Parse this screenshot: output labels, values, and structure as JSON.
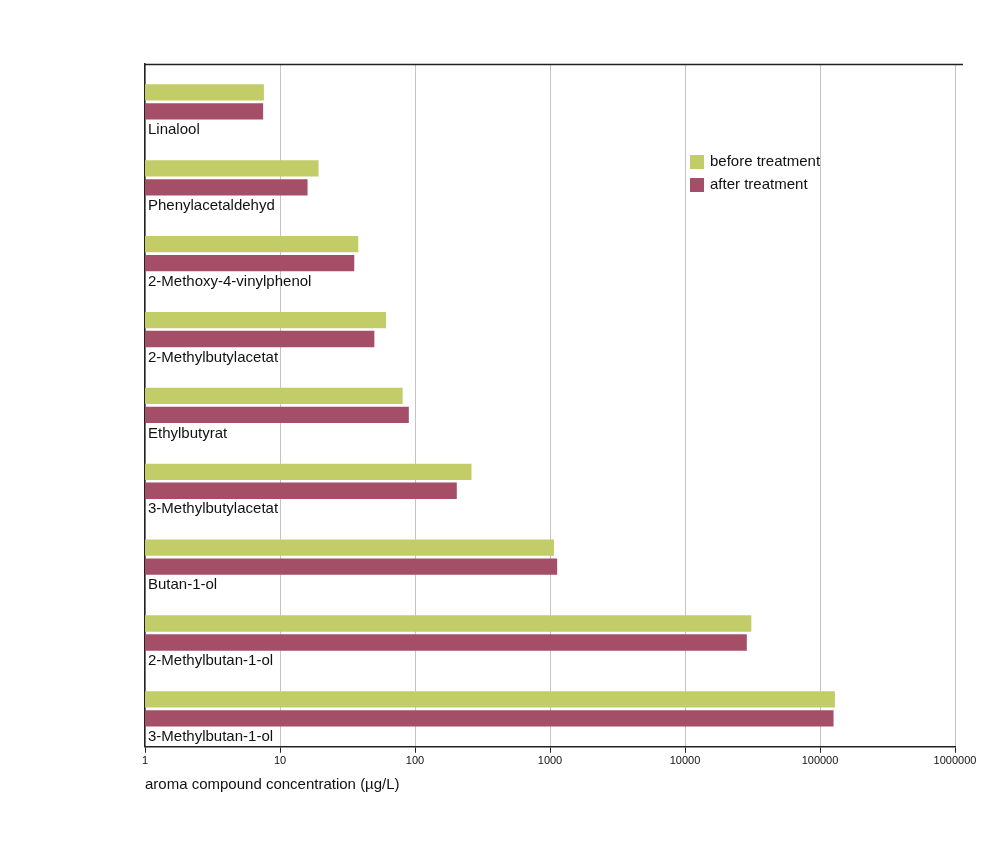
{
  "chart_data": {
    "type": "bar",
    "orientation": "horizontal",
    "log": "x",
    "grid": true,
    "legend": "upper right",
    "x_label": "aroma compound concentration (µg/L)",
    "categories": [
      "Linalool",
      "Phenylacetaldehyd",
      "2-Methoxy-4-vinylphenol",
      "2-Methylbutylacetat",
      "Ethylbutyrat",
      "3-Methylbutylacetat",
      "Butan-1-ol",
      "2-Methylbutan-1-ol",
      "3-Methylbutan-1-ol"
    ],
    "series": [
      {
        "name": "before treatment",
        "color": "#c3cd68",
        "values": [
          7.6,
          19.3,
          38,
          61,
          81,
          262,
          1070,
          31000,
          129000
        ]
      },
      {
        "name": "after treatment",
        "color": "#a44f67",
        "values": [
          7.5,
          16,
          35.5,
          50,
          90,
          204,
          1130,
          28700,
          126000
        ]
      }
    ],
    "xlim": [
      1,
      1000000
    ],
    "xticks": [
      1,
      10,
      100,
      1000,
      10000,
      100000,
      1000000
    ]
  }
}
